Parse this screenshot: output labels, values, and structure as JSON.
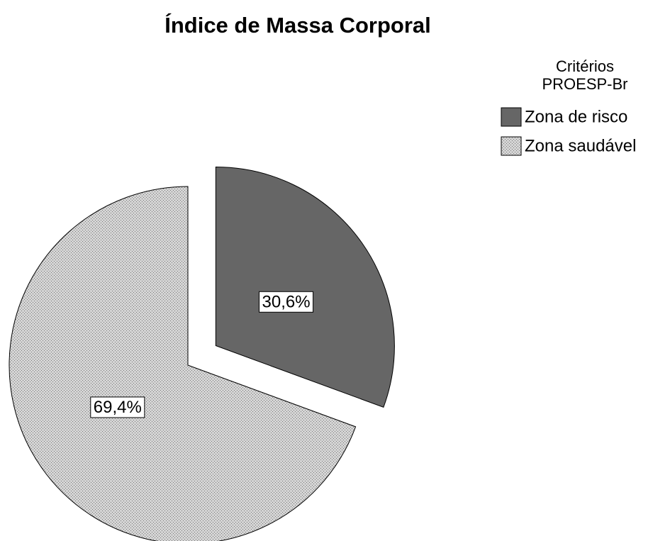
{
  "chart_data": {
    "type": "pie",
    "title": "Índice de Massa Corporal",
    "legend_title": [
      "Critérios",
      "PROESP-Br"
    ],
    "categories": [
      "Zona de risco",
      "Zona saudável"
    ],
    "values": [
      30.6,
      69.4
    ],
    "value_labels": [
      "30,6%",
      "69,4%"
    ],
    "colors": [
      "#666666",
      "#d4d4d4"
    ],
    "legend": "top-right"
  }
}
